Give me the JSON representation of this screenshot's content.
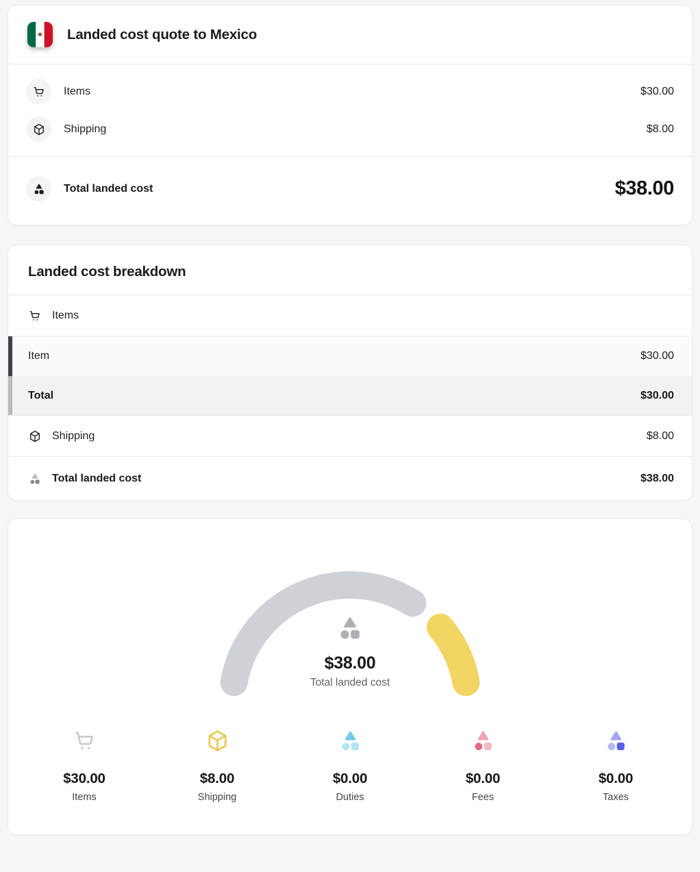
{
  "quote_card": {
    "title": "Landed cost quote to Mexico",
    "country": "Mexico",
    "rows": [
      {
        "icon": "cart-icon",
        "label": "Items",
        "value": "$30.00"
      },
      {
        "icon": "package-icon",
        "label": "Shipping",
        "value": "$8.00"
      }
    ],
    "total_row": {
      "icon": "shapes-icon",
      "label": "Total landed cost",
      "value": "$38.00"
    }
  },
  "breakdown_card": {
    "title": "Landed cost breakdown",
    "items_section_label": "Items",
    "item_row": {
      "label": "Item",
      "value": "$30.00"
    },
    "item_total_row": {
      "label": "Total",
      "value": "$30.00"
    },
    "shipping_row": {
      "label": "Shipping",
      "value": "$8.00"
    },
    "total_row": {
      "label": "Total landed cost",
      "value": "$38.00"
    }
  },
  "gauge_card": {
    "center_value": "$38.00",
    "center_label": "Total landed cost",
    "center_icon_color": "#aeb1b5",
    "legend": [
      {
        "label": "Items",
        "value": "$30.00",
        "icon": "cart-icon",
        "color": "#c6c9cd"
      },
      {
        "label": "Shipping",
        "value": "$8.00",
        "icon": "package-icon",
        "color": "#ebc94f"
      },
      {
        "label": "Duties",
        "value": "$0.00",
        "icon": "shapes-icon",
        "icon_colors": {
          "triangle": "#74cbe5",
          "circle": "#b3e5f1",
          "square": "#b3e5f1"
        }
      },
      {
        "label": "Fees",
        "value": "$0.00",
        "icon": "shapes-icon",
        "icon_colors": {
          "triangle": "#f0a3b2",
          "circle": "#e66785",
          "square": "#f2b9c2"
        }
      },
      {
        "label": "Taxes",
        "value": "$0.00",
        "icon": "shapes-icon",
        "icon_colors": {
          "triangle": "#a3a5f3",
          "circle": "#b7b8f7",
          "square": "#575cea"
        }
      }
    ]
  },
  "breakdown_total_icon_colors": {
    "triangle": "#b6b9bd",
    "circle": "#85888c",
    "square": "#85888c"
  },
  "flag_colors": {
    "green": "#006847",
    "white": "#ffffff",
    "red": "#ce1126",
    "emblem": "#8d7146"
  },
  "chart_data": {
    "type": "gauge",
    "title": "Total landed cost",
    "categories": [
      "Items",
      "Shipping",
      "Duties",
      "Fees",
      "Taxes"
    ],
    "values": [
      30,
      8,
      0,
      0,
      0
    ],
    "display_values": [
      "$30.00",
      "$8.00",
      "$0.00",
      "$0.00",
      "$0.00"
    ],
    "total": 38,
    "center_value": "$38.00",
    "center_label": "Total landed cost",
    "unit": "USD",
    "segment_colors": [
      "#ced1d5",
      "#f3d564",
      "#74cbe5",
      "#e66785",
      "#575cea"
    ],
    "start_angle_deg": 170,
    "end_angle_deg": 10,
    "gap_deg": 18,
    "legend_position": "bottom"
  }
}
